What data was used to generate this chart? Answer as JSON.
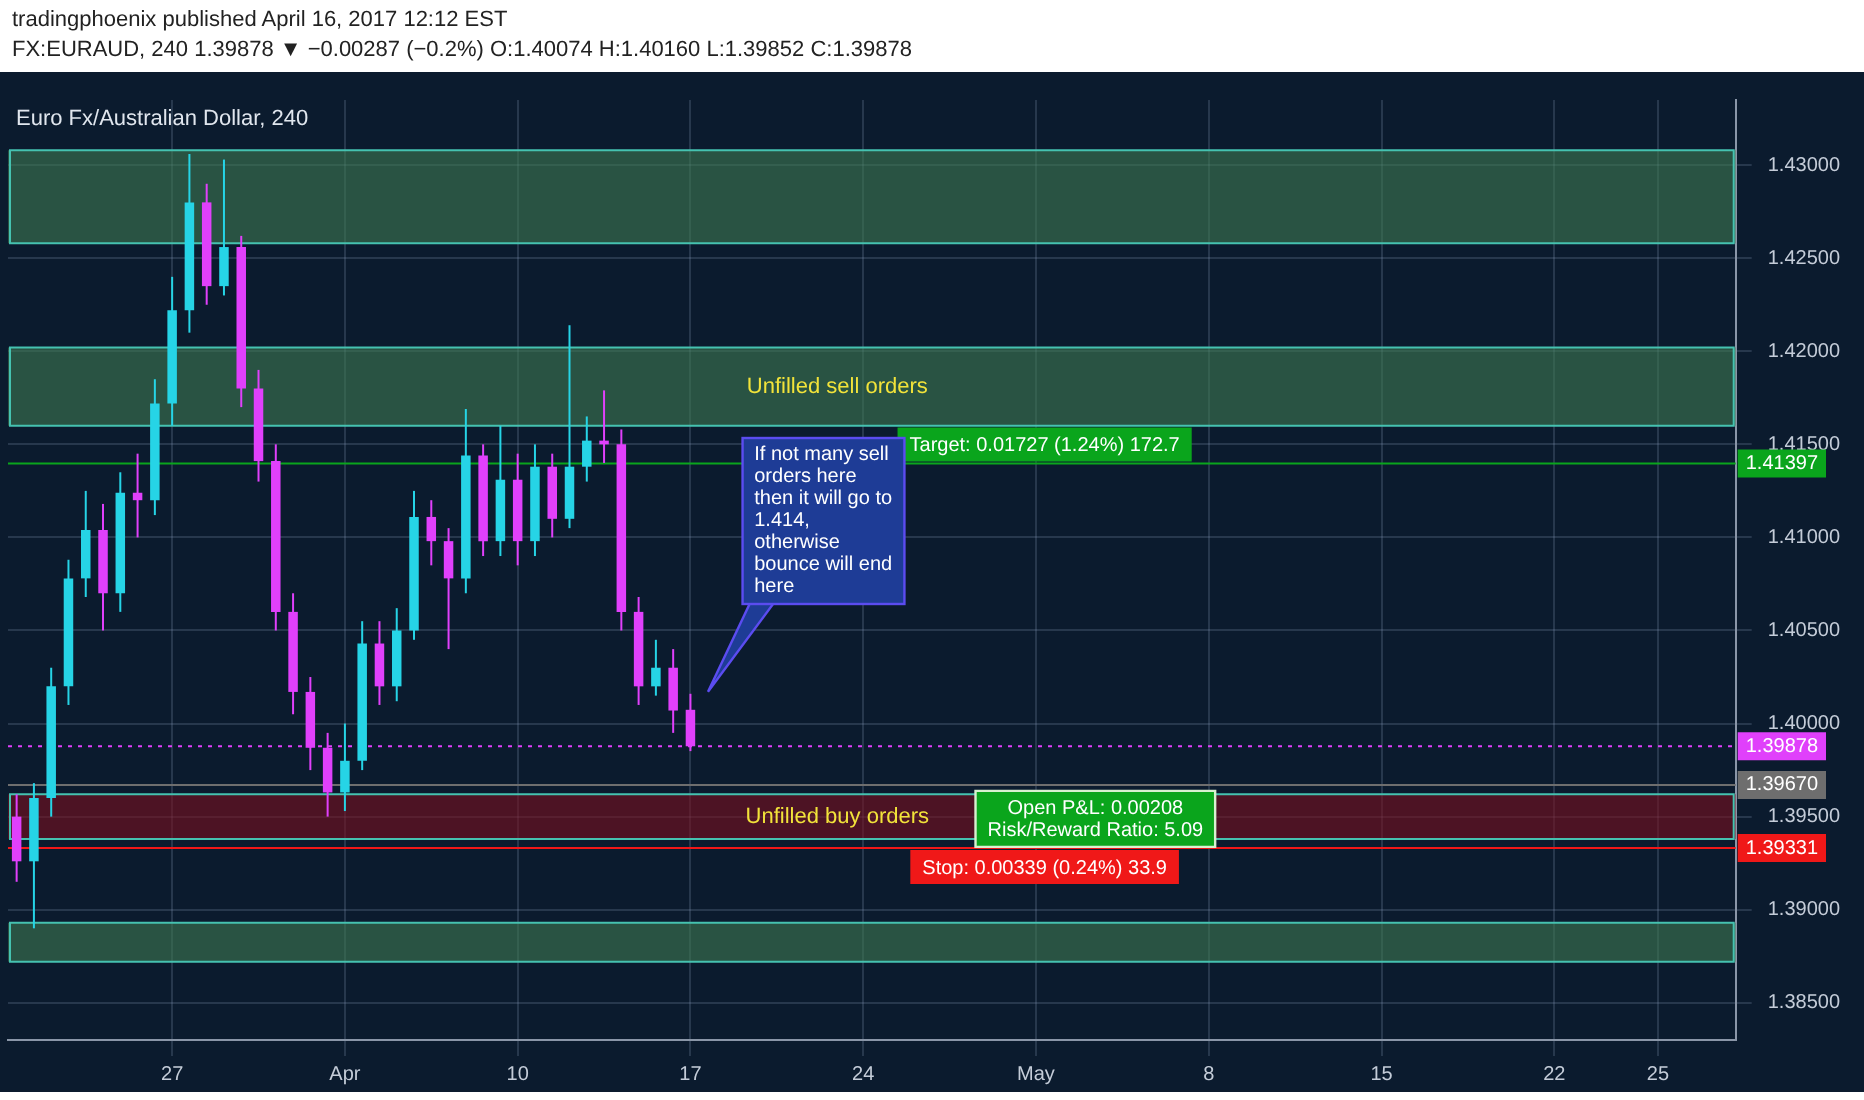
{
  "chart_data": {
    "type": "candlestick",
    "title": "Euro Fx/Australian Dollar, 240",
    "subtitle": "FX:EURAUD, 240  1.39878 ▼ −0.00287 (−0.2%) O:1.40074 H:1.40160 L:1.39852 C:1.39878",
    "annotations": [
      "tradingphoenix published April 16, 2017 12:12 EST",
      "If not many sell\norders here\nthen it will go to\n1.414,\notherwise\nbounce will end\nhere",
      "Open P&L: 0.00208\nRisk/Reward Ratio: 5.09",
      {
        "text": "Target: 0.01727 (1.24%) 172.7",
        "y": 1.41397
      },
      {
        "text": "Stop: 0.00339 (0.24%) 33.9",
        "y": 1.39331
      }
    ],
    "categories": [
      null,
      null,
      null,
      null,
      null,
      null,
      null,
      null,
      null,
      "27",
      null,
      null,
      null,
      null,
      null,
      null,
      null,
      null,
      null,
      "Apr",
      null,
      null,
      null,
      null,
      null,
      null,
      null,
      null,
      null,
      "10",
      null,
      null,
      null,
      null,
      null,
      null,
      null,
      null,
      null,
      "17",
      null,
      null,
      null,
      null,
      null,
      null,
      null,
      null,
      null,
      "24",
      null,
      null,
      null,
      null,
      null,
      null,
      null,
      null,
      null,
      "May",
      null,
      null,
      null,
      null,
      null,
      null,
      null,
      null,
      null,
      "8",
      null,
      null,
      null,
      null,
      null,
      null,
      null,
      null,
      null,
      "15",
      null,
      null,
      null,
      null,
      null,
      null,
      null,
      null,
      null,
      "22",
      null,
      null,
      null,
      null,
      null,
      "25",
      null,
      null,
      null,
      null
    ],
    "ohlc": [
      [
        1.395,
        1.3962,
        1.3915,
        1.3926
      ],
      [
        1.3926,
        1.3968,
        1.389,
        1.396
      ],
      [
        1.396,
        1.403,
        1.395,
        1.402
      ],
      [
        1.402,
        1.4088,
        1.401,
        1.4078
      ],
      [
        1.4078,
        1.4125,
        1.4068,
        1.4104
      ],
      [
        1.4104,
        1.4118,
        1.405,
        1.407
      ],
      [
        1.407,
        1.4135,
        1.406,
        1.4124
      ],
      [
        1.4124,
        1.4145,
        1.41,
        1.412
      ],
      [
        1.412,
        1.4185,
        1.4112,
        1.4172
      ],
      [
        1.4172,
        1.424,
        1.416,
        1.4222
      ],
      [
        1.4222,
        1.4306,
        1.421,
        1.428
      ],
      [
        1.428,
        1.429,
        1.4225,
        1.4235
      ],
      [
        1.4235,
        1.4303,
        1.423,
        1.4256
      ],
      [
        1.4256,
        1.4262,
        1.417,
        1.418
      ],
      [
        1.418,
        1.419,
        1.413,
        1.4141
      ],
      [
        1.4141,
        1.415,
        1.405,
        1.406
      ],
      [
        1.406,
        1.407,
        1.4005,
        1.4017
      ],
      [
        1.4017,
        1.4025,
        1.3975,
        1.3987
      ],
      [
        1.3987,
        1.3995,
        1.395,
        1.3963
      ],
      [
        1.3963,
        1.4,
        1.3953,
        1.398
      ],
      [
        1.398,
        1.4055,
        1.3975,
        1.4043
      ],
      [
        1.4043,
        1.4055,
        1.401,
        1.402
      ],
      [
        1.402,
        1.4062,
        1.4012,
        1.405
      ],
      [
        1.405,
        1.4125,
        1.4045,
        1.4111
      ],
      [
        1.4111,
        1.412,
        1.4085,
        1.4098
      ],
      [
        1.4098,
        1.4105,
        1.404,
        1.4078
      ],
      [
        1.4078,
        1.4169,
        1.407,
        1.4144
      ],
      [
        1.4144,
        1.415,
        1.409,
        1.4098
      ],
      [
        1.4098,
        1.416,
        1.409,
        1.4131
      ],
      [
        1.4131,
        1.4145,
        1.4085,
        1.4098
      ],
      [
        1.4098,
        1.415,
        1.409,
        1.4138
      ],
      [
        1.4138,
        1.4145,
        1.41,
        1.411
      ],
      [
        1.411,
        1.4214,
        1.4105,
        1.4138
      ],
      [
        1.4138,
        1.4165,
        1.413,
        1.4152
      ],
      [
        1.4152,
        1.4179,
        1.414,
        1.415
      ],
      [
        1.415,
        1.4158,
        1.405,
        1.406
      ],
      [
        1.406,
        1.4068,
        1.401,
        1.402
      ],
      [
        1.402,
        1.4045,
        1.4015,
        1.403
      ],
      [
        1.403,
        1.404,
        1.3995,
        1.4007
      ],
      [
        1.40074,
        1.4016,
        1.39852,
        1.39878
      ],
      null,
      null,
      null,
      null,
      null,
      null,
      null,
      null,
      null,
      null,
      null,
      null,
      null,
      null,
      null,
      null,
      null,
      null,
      null,
      null,
      null,
      null,
      null,
      null,
      null,
      null,
      null,
      null,
      null,
      null,
      null,
      null,
      null,
      null,
      null,
      null,
      null,
      null,
      null,
      null,
      null,
      null,
      null,
      null,
      null,
      null,
      null,
      null,
      null,
      null,
      null,
      null,
      null,
      null,
      null,
      null,
      null,
      null,
      null,
      null
    ],
    "colors": [
      "#e040fb",
      "#26d4e6",
      "#26d4e6",
      "#26d4e6",
      "#26d4e6",
      "#e040fb",
      "#26d4e6",
      "#e040fb",
      "#26d4e6",
      "#26d4e6",
      "#26d4e6",
      "#e040fb",
      "#26d4e6",
      "#e040fb",
      "#e040fb",
      "#e040fb",
      "#e040fb",
      "#e040fb",
      "#e040fb",
      "#26d4e6",
      "#26d4e6",
      "#e040fb",
      "#26d4e6",
      "#26d4e6",
      "#e040fb",
      "#e040fb",
      "#26d4e6",
      "#e040fb",
      "#26d4e6",
      "#e040fb",
      "#26d4e6",
      "#e040fb",
      "#26d4e6",
      "#26d4e6",
      "#e040fb",
      "#e040fb",
      "#e040fb",
      "#26d4e6",
      "#e040fb",
      "#e040fb",
      null,
      null,
      null,
      null,
      null,
      null,
      null,
      null,
      null,
      null,
      null,
      null,
      null,
      null,
      null,
      null,
      null,
      null,
      null,
      null,
      null,
      null,
      null,
      null,
      null,
      null,
      null,
      null,
      null,
      null,
      null,
      null,
      null,
      null,
      null,
      null,
      null,
      null,
      null,
      null,
      null,
      null,
      null,
      null,
      null,
      null,
      null,
      null,
      null,
      null,
      null,
      null,
      null,
      null,
      null,
      null,
      null,
      null,
      null,
      null
    ],
    "ylim": [
      1.383,
      1.4335
    ],
    "yticks": [
      {
        "value": 1.385,
        "label": "1.38500"
      },
      {
        "value": 1.39,
        "label": "1.39000"
      },
      {
        "value": 1.395,
        "label": "1.39500"
      },
      {
        "value": 1.4,
        "label": "1.40000"
      },
      {
        "value": 1.405,
        "label": "1.40500"
      },
      {
        "value": 1.41,
        "label": "1.41000"
      },
      {
        "value": 1.415,
        "label": "1.41500"
      },
      {
        "value": 1.42,
        "label": "1.42000"
      },
      {
        "value": 1.425,
        "label": "1.42500"
      },
      {
        "value": 1.43,
        "label": "1.43000"
      }
    ],
    "bands": [
      {
        "axis": "y",
        "from": 1.4258,
        "to": 1.4308,
        "label": null,
        "color": "#3d7a52"
      },
      {
        "axis": "y",
        "from": 1.416,
        "to": 1.4202,
        "label": "Unfilled sell orders",
        "color": "#3d7a52"
      },
      {
        "axis": "y",
        "from": 1.3938,
        "to": 1.3962,
        "label": "Unfilled buy orders",
        "color": "#7a0f1e"
      },
      {
        "axis": "y",
        "from": 1.3872,
        "to": 1.3893,
        "label": null,
        "color": "#3d7a52"
      }
    ],
    "ref_lines": [
      {
        "axis": "y",
        "value": 1.41397,
        "label": "1.41397",
        "color": "#0aa51c",
        "line_style": "solid"
      },
      {
        "axis": "y",
        "value": 1.39878,
        "label": "1.39878",
        "color": "#e040fb",
        "line_style": "dotted"
      },
      {
        "axis": "y",
        "value": 1.3967,
        "label": "1.39670",
        "color": "#6e6e6e",
        "line_style": "solid"
      },
      {
        "axis": "y",
        "value": 1.39331,
        "label": "1.39331",
        "color": "#f01818",
        "line_style": "solid"
      }
    ],
    "grid": true,
    "legend": false
  }
}
